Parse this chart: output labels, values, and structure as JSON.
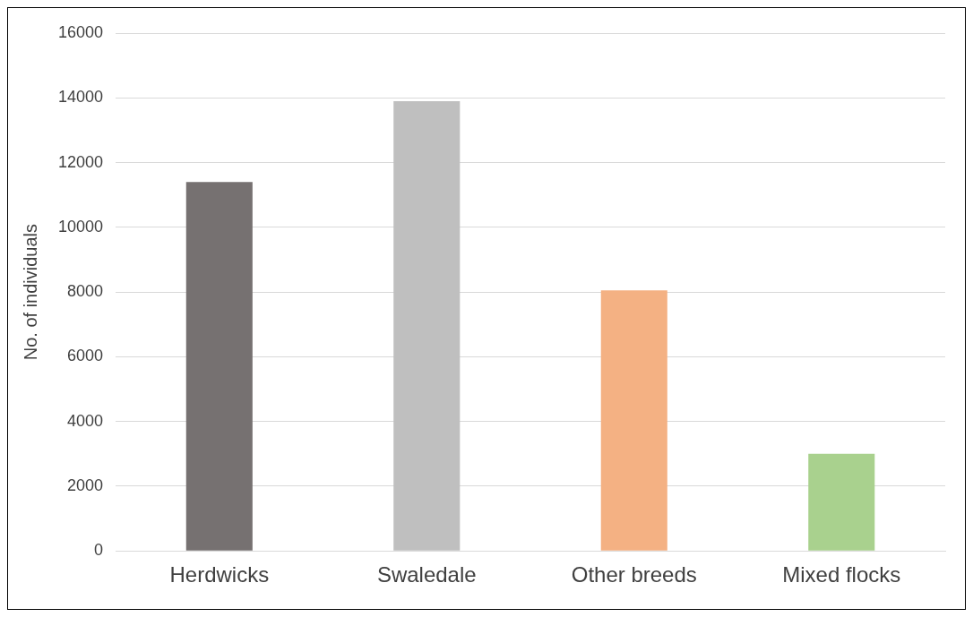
{
  "chart_data": {
    "type": "bar",
    "ylabel": "No. of individuals",
    "categories": [
      "Herdwicks",
      "Swaledale",
      "Other breeds",
      "Mixed flocks"
    ],
    "values": [
      11400,
      13900,
      8050,
      3000
    ],
    "colors": [
      "#767171",
      "#bfbfbf",
      "#f4b183",
      "#a9d18e"
    ],
    "ylim": [
      0,
      16000
    ],
    "yticks": [
      0,
      2000,
      4000,
      6000,
      8000,
      10000,
      12000,
      14000,
      16000
    ],
    "grid": "y",
    "legend": false
  }
}
